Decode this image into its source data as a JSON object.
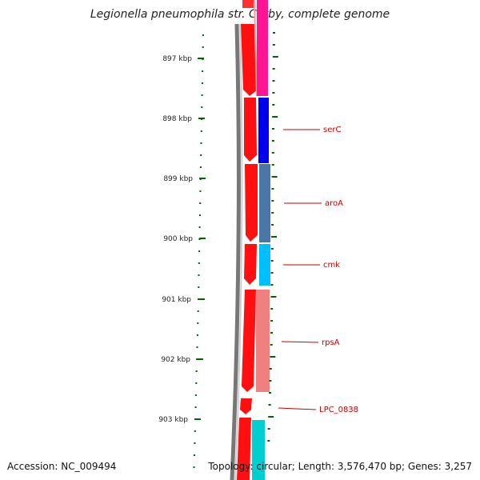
{
  "title": "Legionella pneumophila str. Corby, complete genome",
  "ruler_labels": [
    "897 kbp",
    "898 kbp",
    "899 kbp",
    "900 kbp",
    "901 kbp",
    "902 kbp",
    "903 kbp"
  ],
  "genes": [
    "serC",
    "aroA",
    "cmk",
    "rpsA",
    "LPC_0838"
  ],
  "footer": {
    "accession": "Accession: NC_009494",
    "stats": "Topology: circular; Length: 3,576,470 bp; Genes: 3,257"
  },
  "colors": {
    "forward_strand": "#ff0000",
    "serC": "#0000ee",
    "aroA": "#4a77a8",
    "cmk": "#00bfff",
    "rpsA": "#f08080",
    "top_gene": "#ff1493",
    "bottom_gene": "#00ced1",
    "label": "#cc0000",
    "tick": "#006400"
  }
}
